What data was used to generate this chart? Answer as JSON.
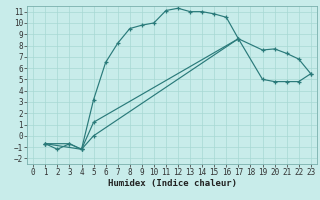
{
  "xlabel": "Humidex (Indice chaleur)",
  "xlim": [
    -0.5,
    23.5
  ],
  "ylim": [
    -2.5,
    11.5
  ],
  "xticks": [
    0,
    1,
    2,
    3,
    4,
    5,
    6,
    7,
    8,
    9,
    10,
    11,
    12,
    13,
    14,
    15,
    16,
    17,
    18,
    19,
    20,
    21,
    22,
    23
  ],
  "yticks": [
    -2,
    -1,
    0,
    1,
    2,
    3,
    4,
    5,
    6,
    7,
    8,
    9,
    10,
    11
  ],
  "bg_color": "#c8ecea",
  "line_color": "#2a7a7a",
  "grid_color": "#a8d8d4",
  "line1_x": [
    1,
    2,
    3,
    4,
    5,
    6,
    7,
    8,
    9,
    10,
    11,
    12,
    13,
    14,
    15,
    16,
    17
  ],
  "line1_y": [
    -0.7,
    -1.2,
    -0.7,
    -1.2,
    3.2,
    6.5,
    8.2,
    9.5,
    9.8,
    10.0,
    11.1,
    11.3,
    11.0,
    11.0,
    10.8,
    10.5,
    8.6
  ],
  "line2_x": [
    1,
    3,
    4,
    5,
    17,
    19,
    20,
    21,
    22,
    23
  ],
  "line2_y": [
    -0.7,
    -0.7,
    -1.2,
    1.2,
    8.6,
    7.6,
    7.7,
    7.3,
    6.8,
    5.5
  ],
  "line3_x": [
    1,
    4,
    5,
    17,
    19,
    20,
    21,
    22,
    23
  ],
  "line3_y": [
    -0.7,
    -1.2,
    0.0,
    8.6,
    5.0,
    4.8,
    4.8,
    4.8,
    5.5
  ],
  "tick_fontsize": 5.5,
  "label_fontsize": 6.5
}
